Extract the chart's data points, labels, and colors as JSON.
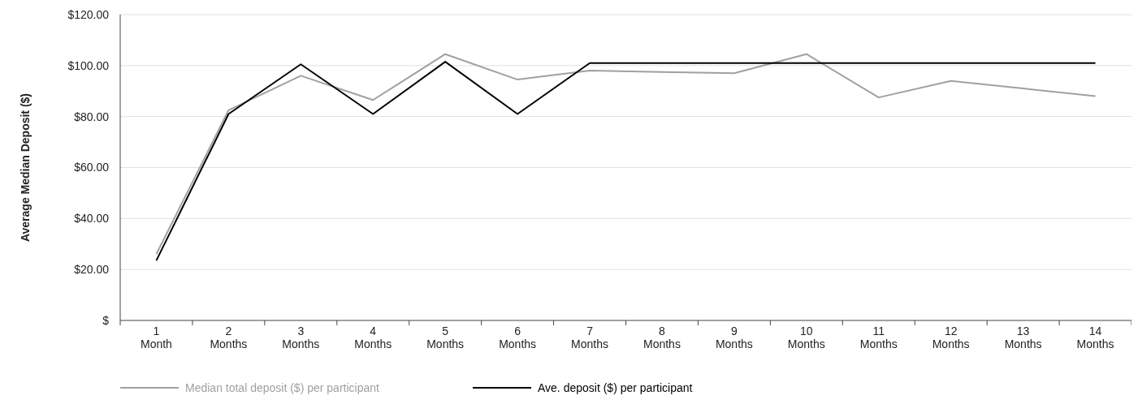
{
  "chart_data": {
    "type": "line",
    "ylabel": "Average Median Deposit ($)",
    "categories": [
      "1 Month",
      "2 Months",
      "3 Months",
      "4 Months",
      "5 Months",
      "6 Months",
      "7 Months",
      "8 Months",
      "9 Months",
      "10 Months",
      "11 Months",
      "12 Months",
      "13 Months",
      "14 Months"
    ],
    "series": [
      {
        "name": "Median total deposit ($) per participant",
        "color": "#a0a0a0",
        "values": [
          26,
          82.5,
          96,
          86.5,
          104.5,
          94.5,
          98,
          97.5,
          97,
          104.5,
          87.5,
          94,
          91,
          88
        ]
      },
      {
        "name": "Ave. deposit ($) per participant",
        "color": "#000000",
        "values": [
          23.5,
          81,
          100.5,
          81,
          101.5,
          81,
          101,
          101,
          101,
          101,
          101,
          101,
          101,
          101
        ]
      }
    ],
    "ylim": [
      0,
      120
    ],
    "yticks": [
      {
        "value": 0,
        "label": "$"
      },
      {
        "value": 20,
        "label": "$20.00"
      },
      {
        "value": 40,
        "label": "$40.00"
      },
      {
        "value": 60,
        "label": "$60.00"
      },
      {
        "value": 80,
        "label": "$80.00"
      },
      {
        "value": 100,
        "label": "$100.00"
      },
      {
        "value": 120,
        "label": "$120.00"
      }
    ],
    "grid": "y",
    "legend": "bottom",
    "marker": "none",
    "line_style": "solid"
  }
}
